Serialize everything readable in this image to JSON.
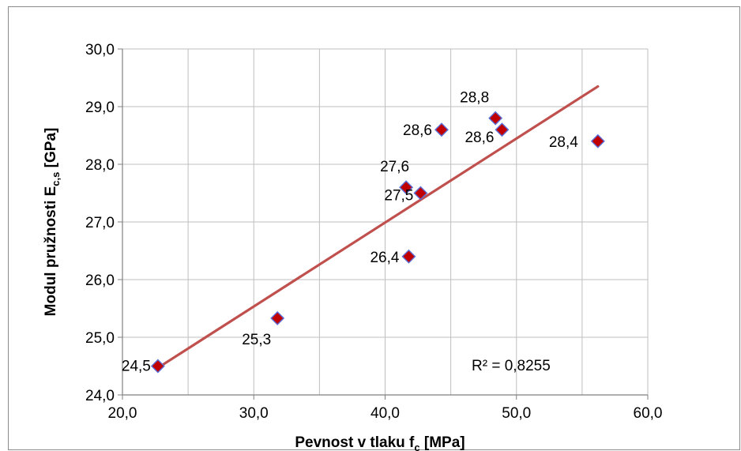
{
  "chart_data": {
    "type": "scatter",
    "title": "",
    "xlabel": "Pevnost v tlaku f",
    "xlabel_sub": "c",
    "xlabel_unit": " [MPa]",
    "ylabel": "Modul pružnosti E",
    "ylabel_sub": "c,s",
    "ylabel_unit": " [GPa]",
    "xlim": [
      20,
      60
    ],
    "ylim": [
      24,
      30
    ],
    "x_ticks": [
      20,
      30,
      40,
      50,
      60
    ],
    "x_tick_labels": [
      "20,0",
      "30,0",
      "40,0",
      "50,0",
      "60,0"
    ],
    "y_ticks": [
      24,
      25,
      26,
      27,
      28,
      29,
      30
    ],
    "y_tick_labels": [
      "24,0",
      "25,0",
      "26,0",
      "27,0",
      "28,0",
      "29,0",
      "30,0"
    ],
    "grid": true,
    "legend": "none",
    "series": [
      {
        "points": [
          {
            "x": 22.7,
            "y": 24.5,
            "label": "24,5"
          },
          {
            "x": 31.8,
            "y": 25.33,
            "label": "25,3"
          },
          {
            "x": 41.8,
            "y": 26.4,
            "label": "26,4"
          },
          {
            "x": 41.6,
            "y": 27.6,
            "label": "27,6"
          },
          {
            "x": 42.7,
            "y": 27.5,
            "label": "27,5"
          },
          {
            "x": 44.3,
            "y": 28.6,
            "label": "28,6"
          },
          {
            "x": 48.4,
            "y": 28.8,
            "label": "28,8"
          },
          {
            "x": 48.9,
            "y": 28.6,
            "label": "28,6"
          },
          {
            "x": 56.2,
            "y": 28.4,
            "label": "28,4"
          }
        ]
      }
    ],
    "trendline": {
      "type": "linear",
      "x": [
        22.7,
        56.2
      ],
      "y": [
        24.47,
        29.35
      ]
    },
    "r_squared_label": "R² = 0,8255",
    "colors": {
      "marker_fill": "#c00000",
      "marker_stroke": "#5b6fd6",
      "trendline": "#c0504d",
      "grid": "#bfbfbf",
      "axis": "#808080",
      "frame": "#8a8a8a"
    }
  }
}
